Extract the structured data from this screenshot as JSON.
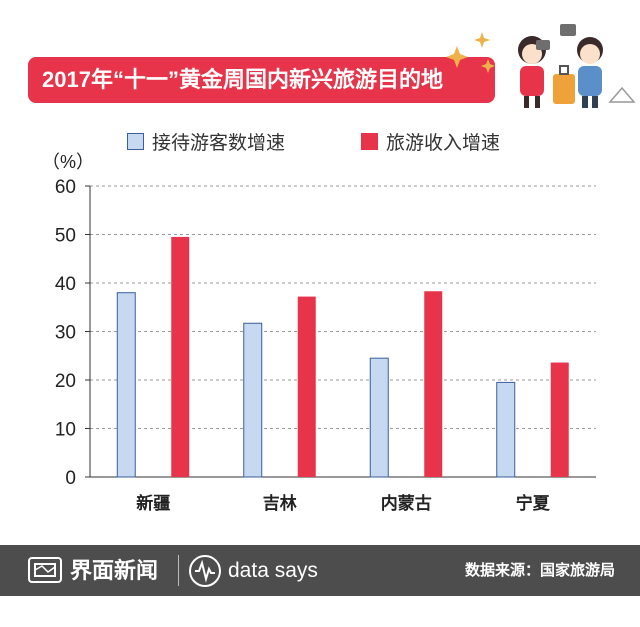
{
  "header": {
    "title": "2017年“十一”黄金周国内新兴旅游目的地"
  },
  "legend": {
    "items": [
      {
        "label": "接待游客数增速",
        "color": "#c6d9f1",
        "border": "#3a5f9b"
      },
      {
        "label": "旅游收入增速",
        "color": "#e8344a",
        "border": "#e8344a"
      }
    ]
  },
  "chart_data": {
    "type": "bar",
    "unit_label": "（%）",
    "categories": [
      "新疆",
      "吉林",
      "内蒙古",
      "宁夏"
    ],
    "series": [
      {
        "name": "接待游客数增速",
        "values": [
          38,
          31.7,
          24.5,
          19.5
        ],
        "color": "#c6d9f1"
      },
      {
        "name": "旅游收入增速",
        "values": [
          49.5,
          37.2,
          38.3,
          23.6
        ],
        "color": "#e8344a"
      }
    ],
    "ylim": [
      0,
      60
    ],
    "yticks": [
      "0",
      "10",
      "20",
      "30",
      "40",
      "50",
      "60"
    ],
    "grid": true,
    "legend_position": "top"
  },
  "footer": {
    "brand": "界面新闻",
    "tagline": "data says",
    "source": "数据来源：国家旅游局"
  },
  "icons": [
    "newspaper-logo-icon",
    "data-says-logo-icon",
    "tourists-illustration",
    "sparkle-icon"
  ]
}
